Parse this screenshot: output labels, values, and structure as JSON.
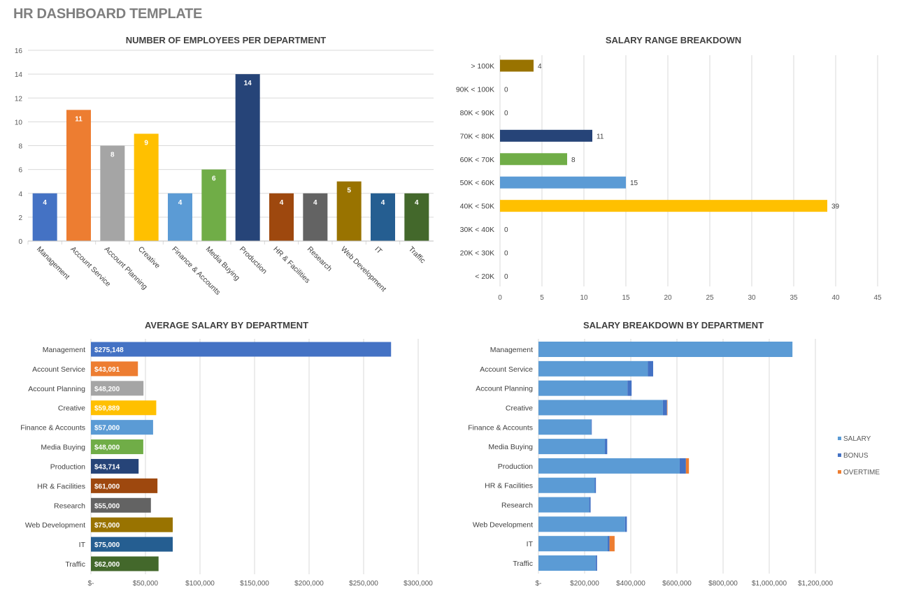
{
  "page_title": "HR DASHBOARD TEMPLATE",
  "chart_data": [
    {
      "id": "employees",
      "type": "bar",
      "title": "NUMBER OF EMPLOYEES PER DEPARTMENT",
      "categories": [
        "Management",
        "Account Service",
        "Account Planning",
        "Creative",
        "Finance & Accounts",
        "Media Buying",
        "Production",
        "HR & Facilities",
        "Research",
        "Web Development",
        "IT",
        "Traffic"
      ],
      "values": [
        4,
        11,
        8,
        9,
        4,
        6,
        14,
        4,
        4,
        5,
        4,
        4
      ],
      "colors": [
        "#4472C4",
        "#ED7D31",
        "#A5A5A5",
        "#FFC000",
        "#5B9BD5",
        "#70AD47",
        "#264478",
        "#9E480E",
        "#636363",
        "#997300",
        "#255E91",
        "#43682B"
      ],
      "ylim": [
        0,
        16
      ],
      "yticks": [
        0,
        2,
        4,
        6,
        8,
        10,
        12,
        14,
        16
      ],
      "grid": true,
      "data_labels": true
    },
    {
      "id": "salary_range",
      "type": "bar",
      "orientation": "horizontal",
      "title": "SALARY RANGE BREAKDOWN",
      "categories": [
        "> 100K",
        "90K < 100K",
        "80K < 90K",
        "70K < 80K",
        "60K < 70K",
        "50K < 60K",
        "40K < 50K",
        "30K < 40K",
        "20K < 30K",
        "< 20K"
      ],
      "values": [
        4,
        0,
        0,
        11,
        8,
        15,
        39,
        0,
        0,
        0
      ],
      "colors": [
        "#997300",
        "#997300",
        "#997300",
        "#264478",
        "#70AD47",
        "#5B9BD5",
        "#FFC000",
        "#FFC000",
        "#FFC000",
        "#FFC000"
      ],
      "xlim": [
        0,
        45
      ],
      "xticks": [
        "0",
        "5",
        "10",
        "15",
        "20",
        "25",
        "30",
        "35",
        "40",
        "45"
      ],
      "grid": true,
      "data_labels": true
    },
    {
      "id": "avg_salary",
      "type": "bar",
      "orientation": "horizontal",
      "title": "AVERAGE SALARY BY DEPARTMENT",
      "categories": [
        "Management",
        "Account Service",
        "Account Planning",
        "Creative",
        "Finance & Accounts",
        "Media Buying",
        "Production",
        "HR & Facilities",
        "Research",
        "Web Development",
        "IT",
        "Traffic"
      ],
      "values": [
        275148,
        43091,
        48200,
        59889,
        57000,
        48000,
        43714,
        61000,
        55000,
        75000,
        75000,
        62000
      ],
      "value_labels": [
        "$275,148",
        "$43,091",
        "$48,200",
        "$59,889",
        "$57,000",
        "$48,000",
        "$43,714",
        "$61,000",
        "$55,000",
        "$75,000",
        "$75,000",
        "$62,000"
      ],
      "colors": [
        "#4472C4",
        "#ED7D31",
        "#A5A5A5",
        "#FFC000",
        "#5B9BD5",
        "#70AD47",
        "#264478",
        "#9E480E",
        "#636363",
        "#997300",
        "#255E91",
        "#43682B"
      ],
      "xlim": [
        0,
        300000
      ],
      "xticks": [
        "$-",
        "$50,000",
        "$100,000",
        "$150,000",
        "$200,000",
        "$250,000",
        "$300,000"
      ],
      "grid": true,
      "data_labels": true
    },
    {
      "id": "salary_breakdown",
      "type": "bar",
      "orientation": "horizontal",
      "stacked": true,
      "title": "SALARY BREAKDOWN BY DEPARTMENT",
      "categories": [
        "Management",
        "Account Service",
        "Account Planning",
        "Creative",
        "Finance & Accounts",
        "Media Buying",
        "Production",
        "HR & Facilities",
        "Research",
        "Web Development",
        "IT",
        "Traffic"
      ],
      "series": [
        {
          "name": "SALARY",
          "color": "#5B9BD5",
          "values": [
            1100592,
            474001,
            385600,
            539001,
            228000,
            288000,
            612000,
            244000,
            220000,
            375000,
            300000,
            248000
          ]
        },
        {
          "name": "BONUS",
          "color": "#4472C4",
          "values": [
            0,
            23000,
            18000,
            18000,
            3000,
            10000,
            27000,
            5000,
            6000,
            8000,
            8000,
            6000
          ]
        },
        {
          "name": "OVERTIME",
          "color": "#ED7D31",
          "values": [
            0,
            0,
            0,
            2000,
            0,
            0,
            13000,
            0,
            0,
            0,
            22000,
            0
          ]
        }
      ],
      "xlim": [
        0,
        1200000
      ],
      "xticks": [
        "$-",
        "$200,000",
        "$400,000",
        "$600,000",
        "$800,000",
        "$1,000,000",
        "$1,200,000"
      ],
      "grid": true,
      "legend": "right"
    }
  ]
}
